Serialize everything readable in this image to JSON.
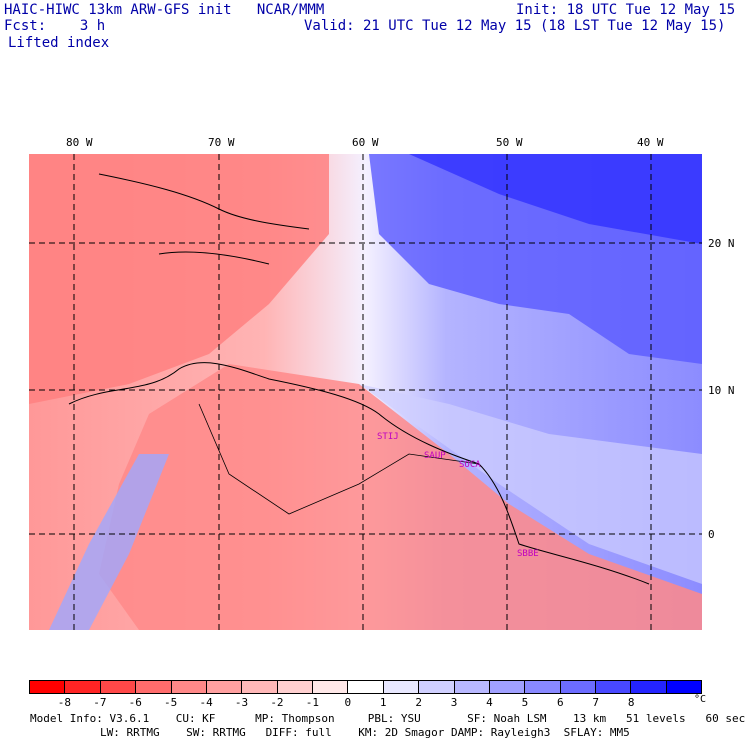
{
  "header": {
    "title": "HAIC-HIWC 13km ARW-GFS init   NCAR/MMM",
    "forecast": "Fcst:    3 h",
    "field": "Lifted index",
    "init": "Init: 18 UTC Tue 12 May 15",
    "valid": "Valid: 21 UTC Tue 12 May 15 (18 LST Tue 12 May 15)"
  },
  "map": {
    "lon_labels": [
      "80 W",
      "70 W",
      "60 W",
      "50 W",
      "40 W"
    ],
    "lat_labels": [
      "20 N",
      "10 N",
      "0"
    ],
    "cities": [
      "STIJ",
      "SAUP",
      "SOCA",
      "SBBE"
    ]
  },
  "colorbar": {
    "colors": [
      "#ff0000",
      "#ff2424",
      "#ff4848",
      "#ff6c6c",
      "#ff8888",
      "#ffa0a0",
      "#ffb8b8",
      "#ffd0d0",
      "#ffe8e8",
      "#ffffff",
      "#e8e8ff",
      "#d0d0ff",
      "#b8b8ff",
      "#a0a0ff",
      "#8888ff",
      "#6c6cff",
      "#4848ff",
      "#2424ff",
      "#0000ff"
    ],
    "ticks": [
      "-8",
      "-7",
      "-6",
      "-5",
      "-4",
      "-3",
      "-2",
      "-1",
      "0",
      "1",
      "2",
      "3",
      "4",
      "5",
      "6",
      "7",
      "8"
    ],
    "unit": "°C"
  },
  "footer": {
    "line1": "Model Info: V3.6.1    CU: KF      MP: Thompson     PBL: YSU       SF: Noah LSM    13 km   51 levels   60 sec",
    "line2": "LW: RRTMG    SW: RRTMG   DIFF: full    KM: 2D Smagor DAMP: Rayleigh3  SFLAY: MM5"
  }
}
